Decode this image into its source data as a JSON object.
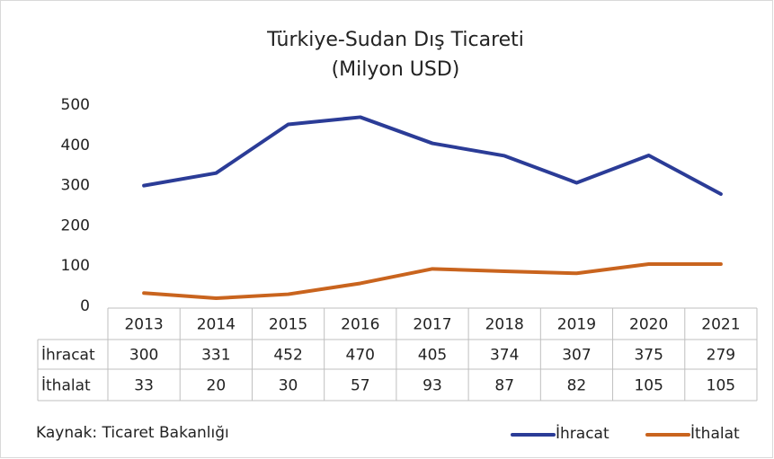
{
  "chart_data": {
    "type": "line",
    "title": "Türkiye-Sudan Dış Ticareti",
    "subtitle": "(Milyon USD)",
    "categories": [
      "2013",
      "2014",
      "2015",
      "2016",
      "2017",
      "2018",
      "2019",
      "2020",
      "2021"
    ],
    "series": [
      {
        "name": "İhracat",
        "color": "#2b3c97",
        "values": [
          300,
          331,
          452,
          470,
          405,
          374,
          307,
          375,
          279
        ]
      },
      {
        "name": "İthalat",
        "color": "#c9641e",
        "values": [
          33,
          20,
          30,
          57,
          93,
          87,
          82,
          105,
          105
        ]
      }
    ],
    "ylim": [
      0,
      500
    ],
    "yticks": [
      0,
      100,
      200,
      300,
      400,
      500
    ],
    "grid": false,
    "legend": "bottom-right",
    "source": "Kaynak: Ticaret Bakanlığı"
  }
}
